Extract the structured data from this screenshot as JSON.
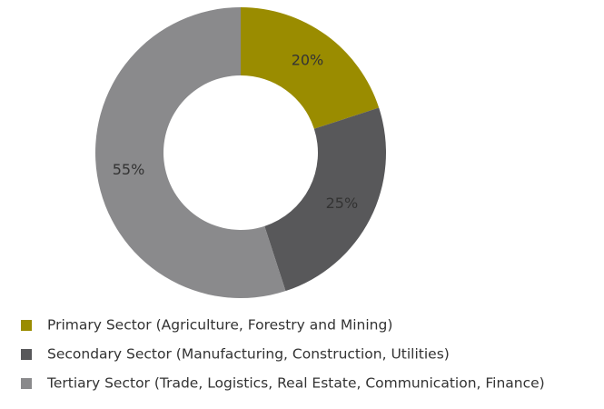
{
  "chart_data": {
    "type": "donut",
    "categories": [
      "Primary Sector (Agriculture, Forestry and Mining)",
      "Secondary Sector (Manufacturing, Construction, Utilities)",
      "Tertiary Sector (Trade, Logistics, Real Estate, Communication, Finance)"
    ],
    "values": [
      20,
      25,
      55
    ],
    "value_labels": [
      "20%",
      "25%",
      "55%"
    ],
    "colors": [
      "#9a8c00",
      "#58585a",
      "#8a8a8c"
    ]
  }
}
